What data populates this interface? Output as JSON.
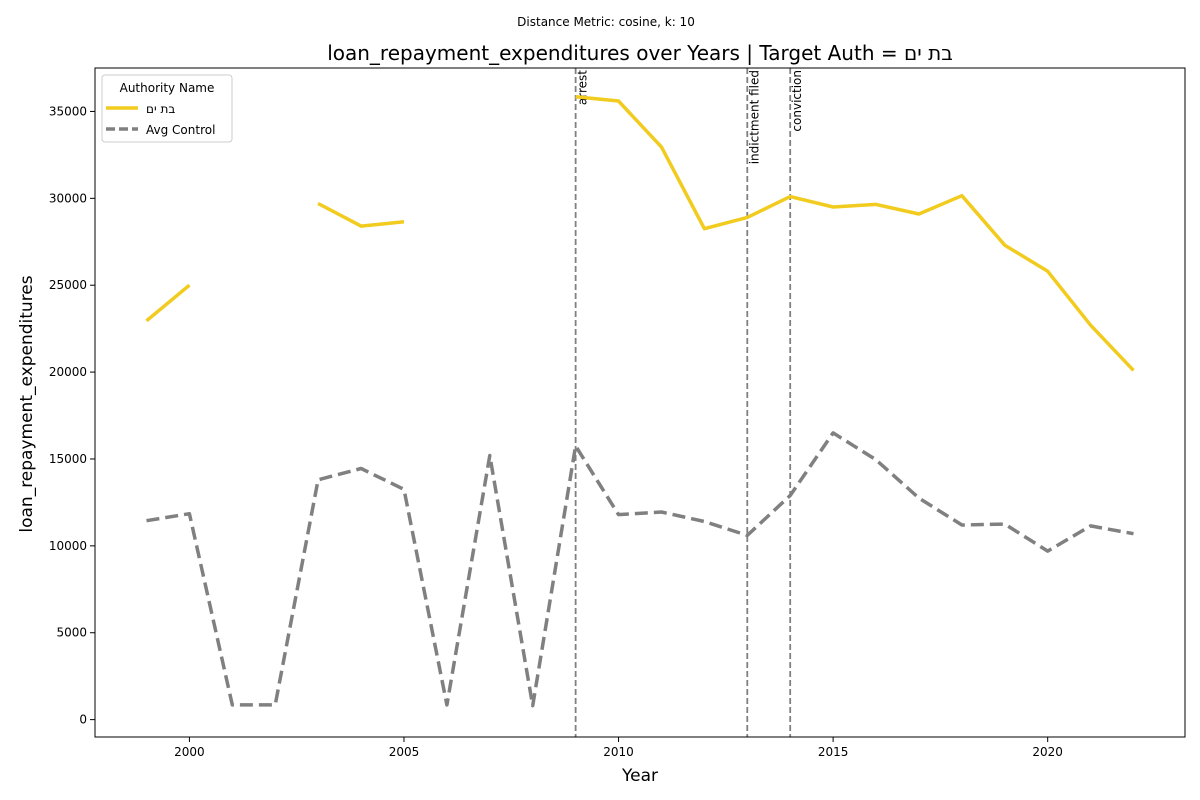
{
  "chart_data": {
    "type": "line",
    "suptitle": "Distance Metric: cosine, k: 10",
    "title": "loan_repayment_expenditures over Years | Target Auth = בת ים",
    "xlabel": "Year",
    "ylabel": "loan_repayment_expenditures",
    "xlim": [
      1997.8,
      2023.2
    ],
    "ylim": [
      -1000,
      37500
    ],
    "x_ticks": [
      2000,
      2005,
      2010,
      2015,
      2020
    ],
    "y_ticks": [
      0,
      5000,
      10000,
      15000,
      20000,
      25000,
      30000,
      35000
    ],
    "grid": false,
    "legend": {
      "title": "Authority Name",
      "placement": "top-left"
    },
    "series": [
      {
        "name": "בת ים",
        "color": "#f2cb1f",
        "style": "solid",
        "points": [
          [
            1999,
            22950
          ],
          [
            2000,
            25000
          ],
          [
            2001,
            null
          ],
          [
            2002,
            null
          ],
          [
            2003,
            29700
          ],
          [
            2004,
            28400
          ],
          [
            2005,
            28650
          ],
          [
            2006,
            null
          ],
          [
            2007,
            null
          ],
          [
            2008,
            null
          ],
          [
            2009,
            35850
          ],
          [
            2010,
            35600
          ],
          [
            2011,
            32950
          ],
          [
            2012,
            28250
          ],
          [
            2013,
            28900
          ],
          [
            2014,
            30100
          ],
          [
            2015,
            29500
          ],
          [
            2016,
            29650
          ],
          [
            2017,
            29100
          ],
          [
            2018,
            30150
          ],
          [
            2019,
            27300
          ],
          [
            2020,
            25800
          ],
          [
            2021,
            22700
          ],
          [
            2022,
            20100
          ]
        ]
      },
      {
        "name": "Avg Control",
        "color": "#808080",
        "style": "dashed",
        "points": [
          [
            1999,
            11450
          ],
          [
            2000,
            11850
          ],
          [
            2001,
            850
          ],
          [
            2002,
            850
          ],
          [
            2003,
            13800
          ],
          [
            2004,
            14450
          ],
          [
            2005,
            13250
          ],
          [
            2006,
            850
          ],
          [
            2007,
            15200
          ],
          [
            2008,
            800
          ],
          [
            2009,
            15750
          ],
          [
            2010,
            11800
          ],
          [
            2011,
            11950
          ],
          [
            2012,
            11400
          ],
          [
            2013,
            10600
          ],
          [
            2014,
            12900
          ],
          [
            2015,
            16500
          ],
          [
            2016,
            14950
          ],
          [
            2017,
            12750
          ],
          [
            2018,
            11200
          ],
          [
            2019,
            11250
          ],
          [
            2020,
            9700
          ],
          [
            2021,
            11150
          ],
          [
            2022,
            10700
          ]
        ]
      }
    ],
    "events": [
      {
        "x": 2009,
        "label": "arrest"
      },
      {
        "x": 2013,
        "label": "indictment filed"
      },
      {
        "x": 2014,
        "label": "conviction"
      }
    ]
  }
}
